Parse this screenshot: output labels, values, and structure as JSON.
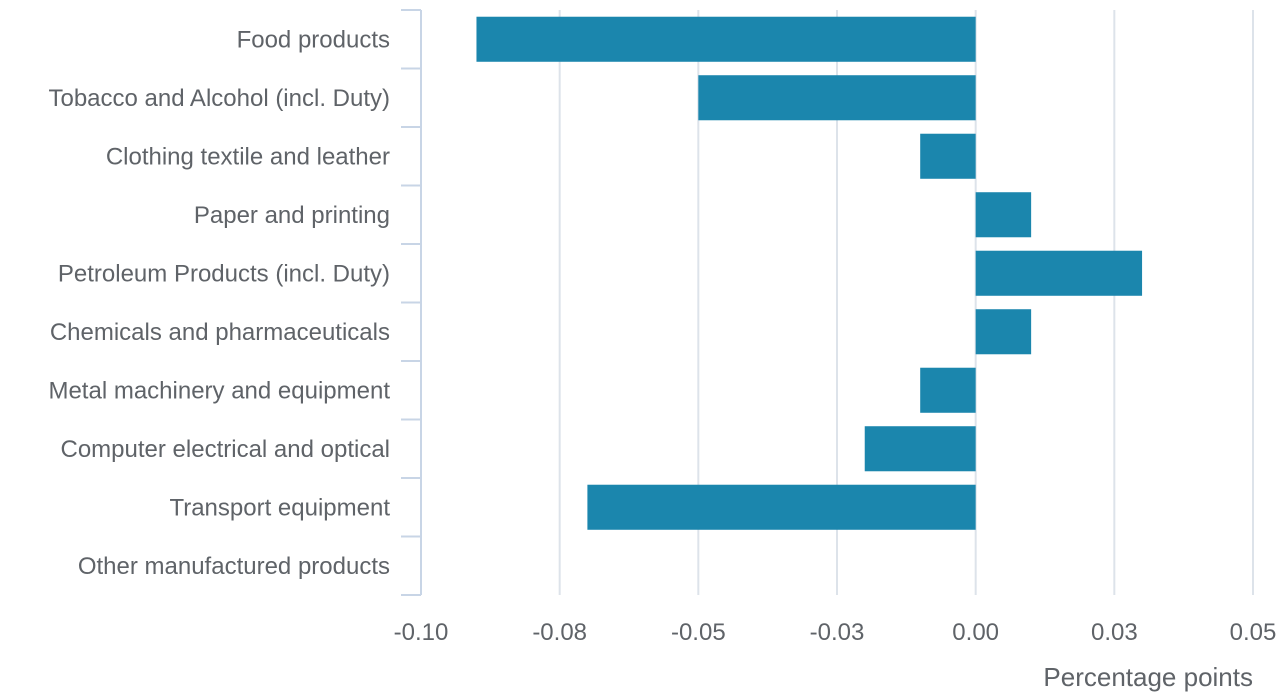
{
  "chart_data": {
    "type": "bar",
    "orientation": "horizontal",
    "categories": [
      "Food products",
      "Tobacco and Alcohol (incl. Duty)",
      "Clothing textile and leather",
      "Paper and printing",
      "Petroleum Products (incl. Duty)",
      "Chemicals and pharmaceuticals",
      "Metal machinery and equipment",
      "Computer electrical and optical",
      "Transport equipment",
      "Other manufactured products"
    ],
    "values": [
      -0.09,
      -0.05,
      -0.01,
      0.01,
      0.03,
      0.01,
      -0.01,
      -0.02,
      -0.07,
      0.0
    ],
    "xlabel": "Percentage points",
    "ylabel": "",
    "xlim": [
      -0.1,
      0.05
    ],
    "xticks": [
      -0.1,
      -0.075,
      -0.05,
      -0.025,
      0.0,
      0.025,
      0.05
    ],
    "xtick_labels": [
      "-0.10",
      "-0.08",
      "-0.05",
      "-0.03",
      "0.00",
      "0.03",
      "0.05"
    ],
    "grid": "vertical",
    "legend": "none",
    "bar_color": "#1b86ad"
  }
}
